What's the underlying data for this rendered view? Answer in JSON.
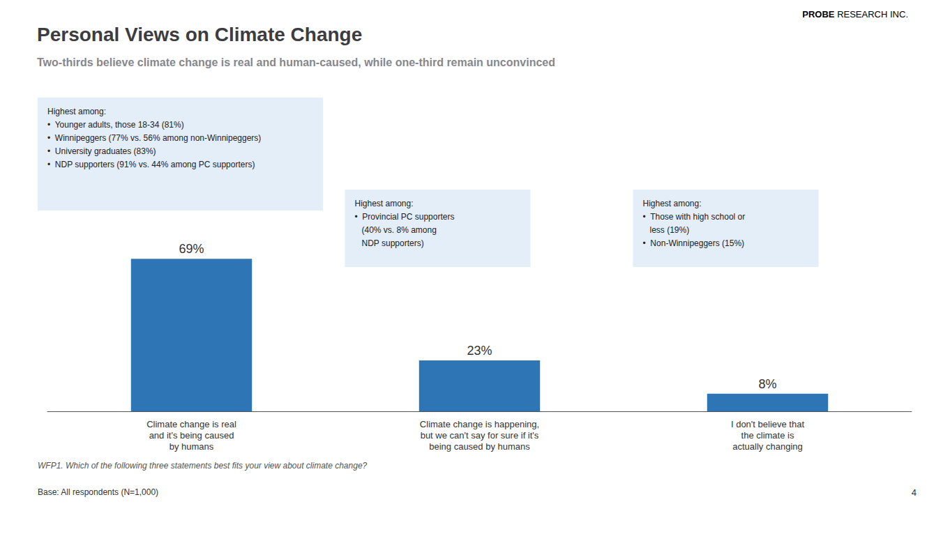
{
  "chart_data": {
    "type": "bar",
    "title": "Personal Views on Climate Change",
    "subtitle": "Two-thirds believe climate change is real and human-caused, while one-third remain unconvinced",
    "categories": [
      "Climate change is real\nand it's being caused\nby humans",
      "Climate change is happening,\nbut we can't say for sure if it's\nbeing caused by humans",
      "I don't believe that\nthe climate is\nactually changing"
    ],
    "values": [
      69,
      23,
      8
    ],
    "value_labels": [
      "69%",
      "23%",
      "8%"
    ],
    "color": "#2E75B6",
    "ylim": [
      0,
      82
    ],
    "grid": false,
    "data_labels": true,
    "tick_labels": "x",
    "annotations": [
      "Highest among:\n•  Younger adults, those 18-34 (81%)\n•  Winnipeggers (77% vs. 56% among non-Winnipeggers)\n•  University graduates (83%)\n•  NDP supporters (91% vs. 44% among PC supporters)",
      "Highest among:\n•  Provincial PC supporters\n   (40% vs. 8% among\n   NDP supporters)",
      "Highest among:\n•  Those with high school or\n   less (19%)\n•  Non-Winnipeggers (15%)"
    ],
    "footnote": "WFP1. Which of the following three statements best fits your view about climate change?",
    "base_text": "Base: All respondents (N=1,000)",
    "page_number": "4",
    "logo": [
      "PROBE",
      " RESEARCH INC."
    ]
  }
}
